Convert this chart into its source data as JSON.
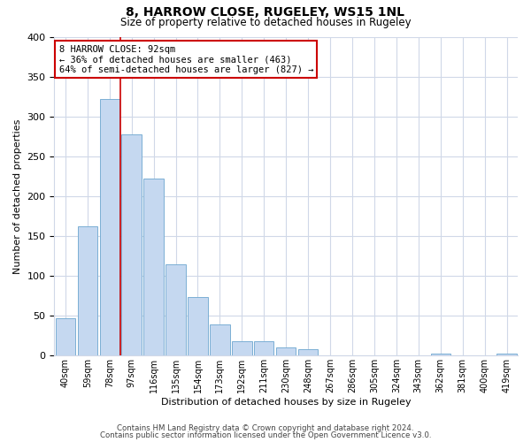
{
  "title": "8, HARROW CLOSE, RUGELEY, WS15 1NL",
  "subtitle": "Size of property relative to detached houses in Rugeley",
  "xlabel": "Distribution of detached houses by size in Rugeley",
  "ylabel": "Number of detached properties",
  "bar_labels": [
    "40sqm",
    "59sqm",
    "78sqm",
    "97sqm",
    "116sqm",
    "135sqm",
    "154sqm",
    "173sqm",
    "192sqm",
    "211sqm",
    "230sqm",
    "248sqm",
    "267sqm",
    "286sqm",
    "305sqm",
    "324sqm",
    "343sqm",
    "362sqm",
    "381sqm",
    "400sqm",
    "419sqm"
  ],
  "bar_values": [
    47,
    162,
    322,
    278,
    222,
    114,
    73,
    39,
    18,
    18,
    10,
    8,
    0,
    0,
    0,
    0,
    0,
    3,
    0,
    0,
    3
  ],
  "bar_color": "#c5d8f0",
  "bar_edge_color": "#7bafd4",
  "highlight_color": "#cc0000",
  "annotation_title": "8 HARROW CLOSE: 92sqm",
  "annotation_line1": "← 36% of detached houses are smaller (463)",
  "annotation_line2": "64% of semi-detached houses are larger (827) →",
  "ylim": [
    0,
    400
  ],
  "yticks": [
    0,
    50,
    100,
    150,
    200,
    250,
    300,
    350,
    400
  ],
  "footer1": "Contains HM Land Registry data © Crown copyright and database right 2024.",
  "footer2": "Contains public sector information licensed under the Open Government Licence v3.0.",
  "bg_color": "#ffffff",
  "grid_color": "#d0d8e8"
}
